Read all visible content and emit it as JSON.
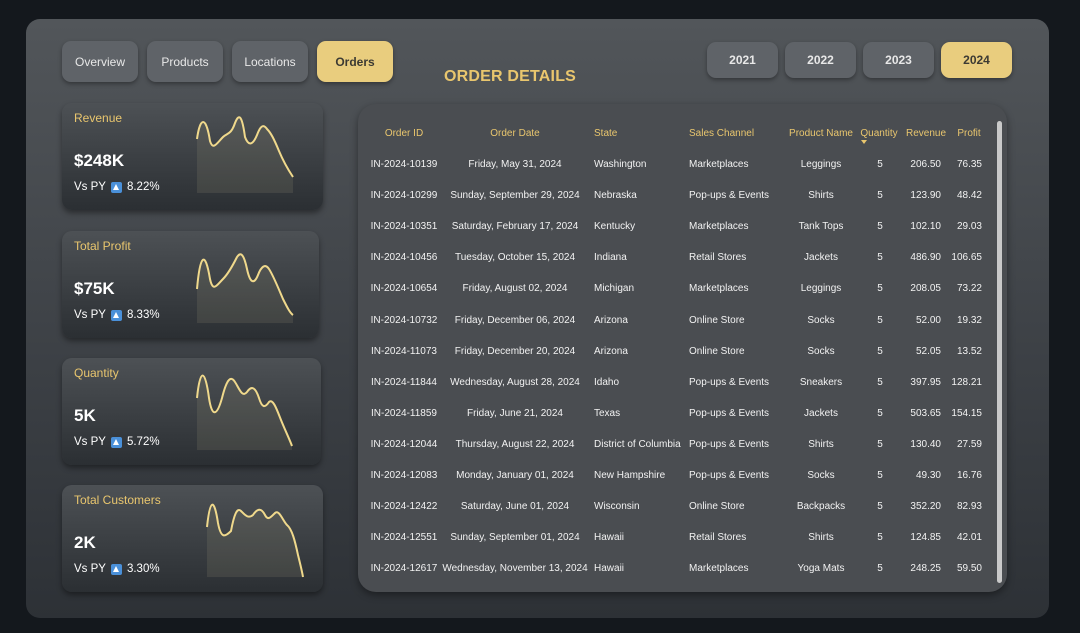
{
  "nav": [
    {
      "label": "Overview",
      "active": false
    },
    {
      "label": "Products",
      "active": false
    },
    {
      "label": "Locations",
      "active": false
    },
    {
      "label": "Orders",
      "active": true
    }
  ],
  "years": [
    {
      "label": "2021",
      "active": false
    },
    {
      "label": "2022",
      "active": false
    },
    {
      "label": "2023",
      "active": false
    },
    {
      "label": "2024",
      "active": true
    }
  ],
  "title": "ORDER DETAILS",
  "kpis": [
    {
      "label": "Revenue",
      "value": "$248K",
      "vs_label": "Vs PY",
      "change": "8.22%"
    },
    {
      "label": "Total Profit",
      "value": "$75K",
      "vs_label": "Vs PY",
      "change": "8.33%"
    },
    {
      "label": "Quantity",
      "value": "5K",
      "vs_label": "Vs PY",
      "change": "5.72%"
    },
    {
      "label": "Total Customers",
      "value": "2K",
      "vs_label": "Vs PY",
      "change": "3.30%"
    }
  ],
  "colors": {
    "accent": "#e9cd7e",
    "title": "#e9c66e",
    "spark": "#f0d98c",
    "up_icon": "#4a90d9"
  },
  "table": {
    "headers": [
      "Order ID",
      "Order Date",
      "State",
      "Sales Channel",
      "Product Name",
      "Quantity",
      "Revenue",
      "Profit"
    ],
    "sorted_column": "Quantity",
    "rows": [
      [
        "IN-2024-10139",
        "Friday, May 31, 2024",
        "Washington",
        "Marketplaces",
        "Leggings",
        "5",
        "206.50",
        "76.35"
      ],
      [
        "IN-2024-10299",
        "Sunday, September 29, 2024",
        "Nebraska",
        "Pop-ups & Events",
        "Shirts",
        "5",
        "123.90",
        "48.42"
      ],
      [
        "IN-2024-10351",
        "Saturday, February 17, 2024",
        "Kentucky",
        "Marketplaces",
        "Tank Tops",
        "5",
        "102.10",
        "29.03"
      ],
      [
        "IN-2024-10456",
        "Tuesday, October 15, 2024",
        "Indiana",
        "Retail Stores",
        "Jackets",
        "5",
        "486.90",
        "106.65"
      ],
      [
        "IN-2024-10654",
        "Friday, August 02, 2024",
        "Michigan",
        "Marketplaces",
        "Leggings",
        "5",
        "208.05",
        "73.22"
      ],
      [
        "IN-2024-10732",
        "Friday, December 06, 2024",
        "Arizona",
        "Online Store",
        "Socks",
        "5",
        "52.00",
        "19.32"
      ],
      [
        "IN-2024-11073",
        "Friday, December 20, 2024",
        "Arizona",
        "Online Store",
        "Socks",
        "5",
        "52.05",
        "13.52"
      ],
      [
        "IN-2024-11844",
        "Wednesday, August 28, 2024",
        "Idaho",
        "Pop-ups & Events",
        "Sneakers",
        "5",
        "397.95",
        "128.21"
      ],
      [
        "IN-2024-11859",
        "Friday, June 21, 2024",
        "Texas",
        "Pop-ups & Events",
        "Jackets",
        "5",
        "503.65",
        "154.15"
      ],
      [
        "IN-2024-12044",
        "Thursday, August 22, 2024",
        "District of Columbia",
        "Pop-ups & Events",
        "Shirts",
        "5",
        "130.40",
        "27.59"
      ],
      [
        "IN-2024-12083",
        "Monday, January 01, 2024",
        "New Hampshire",
        "Pop-ups & Events",
        "Socks",
        "5",
        "49.30",
        "16.76"
      ],
      [
        "IN-2024-12422",
        "Saturday, June 01, 2024",
        "Wisconsin",
        "Online Store",
        "Backpacks",
        "5",
        "352.20",
        "82.93"
      ],
      [
        "IN-2024-12551",
        "Sunday, September 01, 2024",
        "Hawaii",
        "Retail Stores",
        "Shirts",
        "5",
        "124.85",
        "42.01"
      ],
      [
        "IN-2024-12617",
        "Wednesday, November 13, 2024",
        "Hawaii",
        "Marketplaces",
        "Yoga Mats",
        "5",
        "248.25",
        "59.50"
      ]
    ]
  }
}
